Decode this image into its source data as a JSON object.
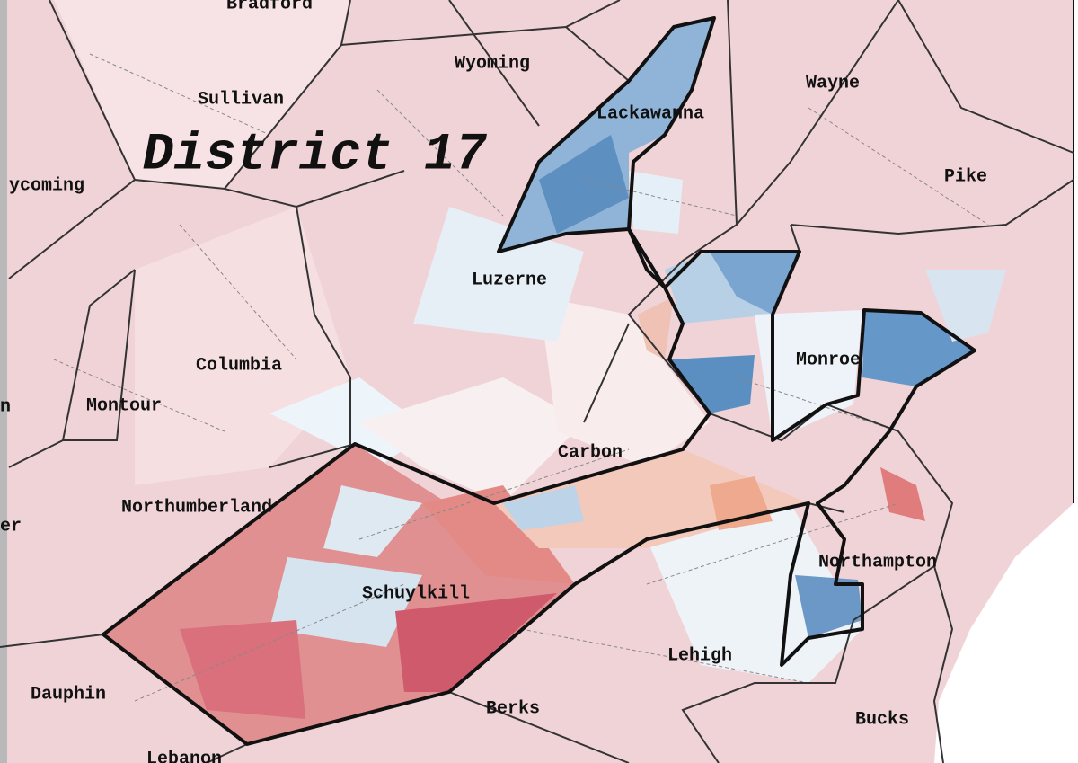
{
  "title": "District 17",
  "labels": [
    "Bradford",
    "Wyoming",
    "Sullivan",
    "Lackawanna",
    "Wayne",
    "ycoming",
    "Pike",
    "Luzerne",
    "Columbia",
    "Monroe",
    "Montour",
    "n",
    "Carbon",
    "Northumberland",
    "er",
    "Northampton",
    "Schuylkill",
    "Lehigh",
    "Dauphin",
    "Berks",
    "Bucks",
    "Lebanon"
  ]
}
